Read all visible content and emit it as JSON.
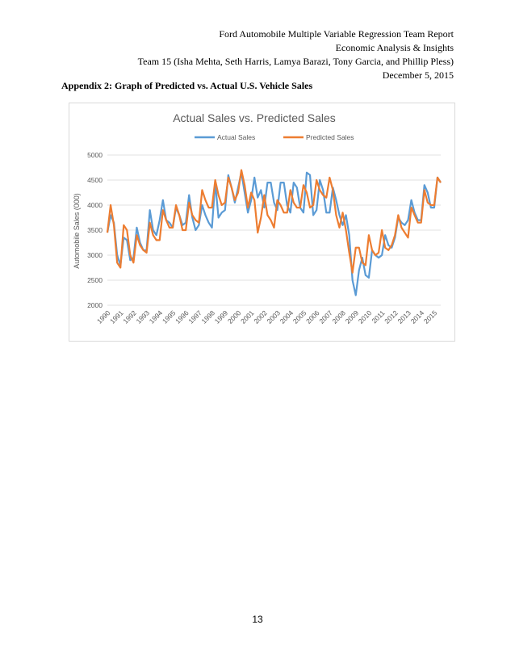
{
  "header": {
    "line1": "Ford Automobile Multiple Variable Regression Team Report",
    "line2": "Economic Analysis & Insights",
    "line3": "Team 15 (Isha Mehta, Seth Harris, Lamya Barazi, Tony Garcia, and Phillip Pless)",
    "line4": "December 5, 2015"
  },
  "appendix_title": "Appendix 2: Graph of Predicted vs. Actual U.S. Vehicle Sales",
  "page_number": "13",
  "chart_data": {
    "type": "line",
    "title": "Actual Sales vs. Predicted Sales",
    "xlabel": "",
    "ylabel": "Automobile Sales (000)",
    "ylim": [
      2000,
      5000
    ],
    "yticks": [
      2000,
      2500,
      3000,
      3500,
      4000,
      4500,
      5000
    ],
    "yticks_labels": [
      "2000",
      "2500",
      "3000",
      "3500",
      "4000",
      "4500",
      "5000"
    ],
    "grid": true,
    "legend_position": "top-center",
    "x_start_year": 1990,
    "points_per_year": 4,
    "xtick_labels": [
      "1990",
      "1991",
      "1992",
      "1993",
      "1994",
      "1995",
      "1996",
      "1997",
      "1998",
      "1999",
      "2000",
      "2001",
      "2002",
      "2003",
      "2004",
      "2005",
      "2006",
      "2007",
      "2008",
      "2009",
      "2010",
      "2011",
      "2012",
      "2013",
      "2014",
      "2015"
    ],
    "series": [
      {
        "name": "Actual Sales",
        "color": "#5b9bd5",
        "values": [
          3450,
          3800,
          3650,
          3000,
          2800,
          3350,
          3300,
          2900,
          2950,
          3550,
          3250,
          3100,
          3100,
          3900,
          3500,
          3400,
          3700,
          4100,
          3700,
          3650,
          3550,
          3950,
          3800,
          3600,
          3650,
          4200,
          3750,
          3500,
          3600,
          4000,
          3800,
          3650,
          3550,
          4450,
          3750,
          3850,
          3900,
          4600,
          4350,
          4050,
          4350,
          4650,
          4250,
          3850,
          4100,
          4550,
          4150,
          4300,
          3950,
          4450,
          4450,
          4050,
          3900,
          4450,
          4450,
          4000,
          3850,
          4450,
          4350,
          3950,
          3850,
          4650,
          4600,
          3800,
          3900,
          4500,
          4300,
          3850,
          3850,
          4350,
          4100,
          3800,
          3600,
          3800,
          3400,
          2500,
          2200,
          2700,
          2950,
          2600,
          2550,
          3100,
          3000,
          2950,
          3000,
          3400,
          3200,
          3150,
          3350,
          3750,
          3650,
          3600,
          3700,
          4100,
          3850,
          3700,
          3700,
          4400,
          4250,
          3950,
          3950,
          4550,
          4450
        ]
      },
      {
        "name": "Predicted Sales",
        "color": "#ed7d31",
        "values": [
          3450,
          4000,
          3600,
          2850,
          2750,
          3600,
          3500,
          3000,
          2850,
          3400,
          3200,
          3100,
          3050,
          3650,
          3400,
          3300,
          3300,
          3900,
          3700,
          3550,
          3550,
          4000,
          3800,
          3500,
          3500,
          4050,
          3800,
          3700,
          3650,
          4300,
          4100,
          3950,
          3950,
          4500,
          4200,
          4000,
          4050,
          4550,
          4350,
          4100,
          4250,
          4700,
          4400,
          3950,
          4250,
          4100,
          3450,
          3750,
          4200,
          3800,
          3700,
          3550,
          4100,
          4000,
          3850,
          3850,
          4300,
          4050,
          3950,
          3950,
          4400,
          4250,
          3950,
          4000,
          4500,
          4300,
          4200,
          4150,
          4550,
          4300,
          3800,
          3550,
          3850,
          3500,
          3050,
          2650,
          3150,
          3150,
          2850,
          2800,
          3400,
          3100,
          3000,
          3050,
          3500,
          3150,
          3100,
          3200,
          3400,
          3800,
          3550,
          3450,
          3350,
          3950,
          3800,
          3650,
          3650,
          4300,
          4050,
          4000,
          4000,
          4550,
          4450
        ]
      }
    ]
  }
}
